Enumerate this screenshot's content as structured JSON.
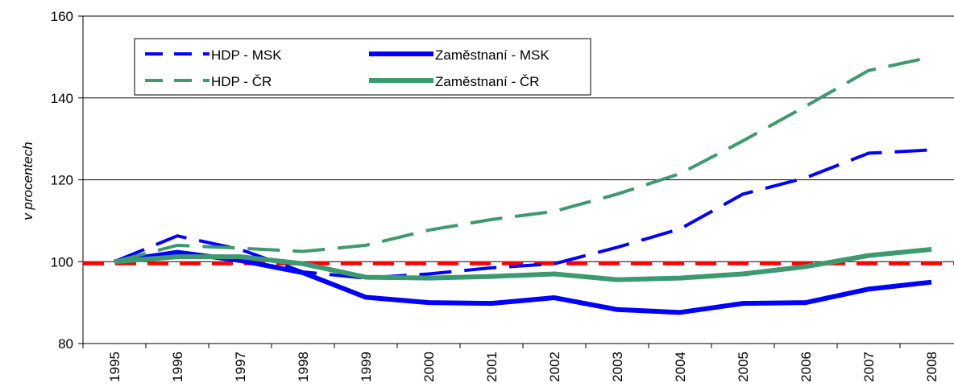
{
  "chart_data": {
    "type": "line",
    "ylabel": "v procentech",
    "categories": [
      "1995",
      "1996",
      "1997",
      "1998",
      "1999",
      "2000",
      "2001",
      "2002",
      "2003",
      "2004",
      "2005",
      "2006",
      "2007",
      "2008"
    ],
    "series": [
      {
        "name": "HDP - MSK",
        "color": "#0000ff",
        "style": "dashed",
        "values": [
          100,
          106.3,
          103,
          97.5,
          96,
          97,
          98.5,
          99.5,
          103.5,
          108,
          116.5,
          120.5,
          126.5,
          127.3
        ]
      },
      {
        "name": "Zaměstnaní - MSK",
        "color": "#0000ff",
        "style": "solid",
        "values": [
          100,
          102.3,
          100.3,
          97.3,
          91.3,
          90,
          89.8,
          91.2,
          88.3,
          87.6,
          89.8,
          90,
          93.3,
          95
        ]
      },
      {
        "name": "HDP - ČR",
        "color": "#3d9970",
        "style": "dashed",
        "values": [
          100,
          104,
          103.3,
          102.5,
          104,
          107.7,
          110.3,
          112.3,
          116.5,
          121.5,
          129.5,
          138,
          146.7,
          150
        ]
      },
      {
        "name": "Zaměstnaní - ČR",
        "color": "#3d9970",
        "style": "solid",
        "values": [
          100,
          101.2,
          101.2,
          99.5,
          96.2,
          96,
          96.4,
          97,
          95.6,
          96,
          97,
          98.8,
          101.5,
          103
        ]
      }
    ],
    "reference_line": {
      "value": 99.6,
      "color": "#ff0000"
    },
    "ylim": [
      80,
      160
    ],
    "yticks": [
      80,
      100,
      120,
      140,
      160
    ],
    "grid": true,
    "legend": "upper left"
  }
}
